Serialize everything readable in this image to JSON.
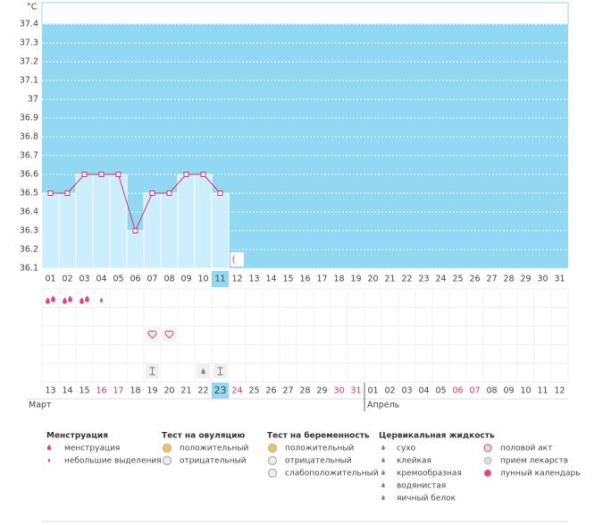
{
  "chart_data": {
    "type": "line",
    "unit": "°C",
    "categories": [
      "01",
      "02",
      "03",
      "04",
      "05",
      "06",
      "07",
      "08",
      "09",
      "10",
      "11",
      "12",
      "13",
      "14",
      "15",
      "16",
      "17",
      "18",
      "19",
      "20",
      "21",
      "22",
      "23",
      "24",
      "25",
      "26",
      "27",
      "28",
      "29",
      "30",
      "31"
    ],
    "values": [
      36.5,
      36.5,
      36.6,
      36.6,
      36.6,
      36.3,
      36.5,
      36.5,
      36.6,
      36.6,
      36.5,
      null,
      null,
      null,
      null,
      null,
      null,
      null,
      null,
      null,
      null,
      null,
      null,
      null,
      null,
      null,
      null,
      null,
      null,
      null,
      null
    ],
    "color": "#d9336e",
    "bar_color": "#cdeefc",
    "background": "#92d8f2",
    "ylim": [
      36.1,
      37.4
    ],
    "yticks": [
      36.1,
      36.2,
      36.3,
      36.4,
      36.5,
      36.6,
      36.7,
      36.8,
      36.9,
      37,
      37.1,
      37.2,
      37.3,
      37.4
    ],
    "grid": true,
    "cycle_dates": [
      {
        "text": "13"
      },
      {
        "text": "14"
      },
      {
        "text": "15"
      },
      {
        "text": "16",
        "red": true
      },
      {
        "text": "17",
        "red": true
      },
      {
        "text": "18"
      },
      {
        "text": "19"
      },
      {
        "text": "20"
      },
      {
        "text": "21"
      },
      {
        "text": "22"
      },
      {
        "text": "23"
      },
      {
        "text": "24",
        "red": true
      },
      {
        "text": "25"
      },
      {
        "text": "26"
      },
      {
        "text": "27"
      },
      {
        "text": "28"
      },
      {
        "text": "29"
      },
      {
        "text": "30",
        "red": true
      },
      {
        "text": "31",
        "red": true
      },
      {
        "text": "01"
      },
      {
        "text": "02"
      },
      {
        "text": "03"
      },
      {
        "text": "04"
      },
      {
        "text": "05"
      },
      {
        "text": "06",
        "red": true
      },
      {
        "text": "07",
        "red": true
      },
      {
        "text": "08"
      },
      {
        "text": "09"
      },
      {
        "text": "10"
      },
      {
        "text": "11"
      },
      {
        "text": "12"
      }
    ],
    "months": [
      "Март",
      "Апрель"
    ],
    "legend": [
      {
        "title": "Менструация",
        "items": [
          "менструация",
          "небольшие выделения"
        ]
      },
      {
        "title": "Тест на овуляцию",
        "items": [
          "положительный",
          "отрицательный"
        ]
      },
      {
        "title": "Тест на беременность",
        "items": [
          "положительный",
          "отрицательный",
          "слабоположительный"
        ]
      },
      {
        "title": "Цервикальная жидкость",
        "items": [
          "сухо",
          "клейкая",
          "кремообразная",
          "водянистая",
          "яичный белок"
        ]
      },
      {
        "items": [
          "половой акт",
          "прием лекарств",
          "лунный календарь"
        ]
      }
    ]
  }
}
